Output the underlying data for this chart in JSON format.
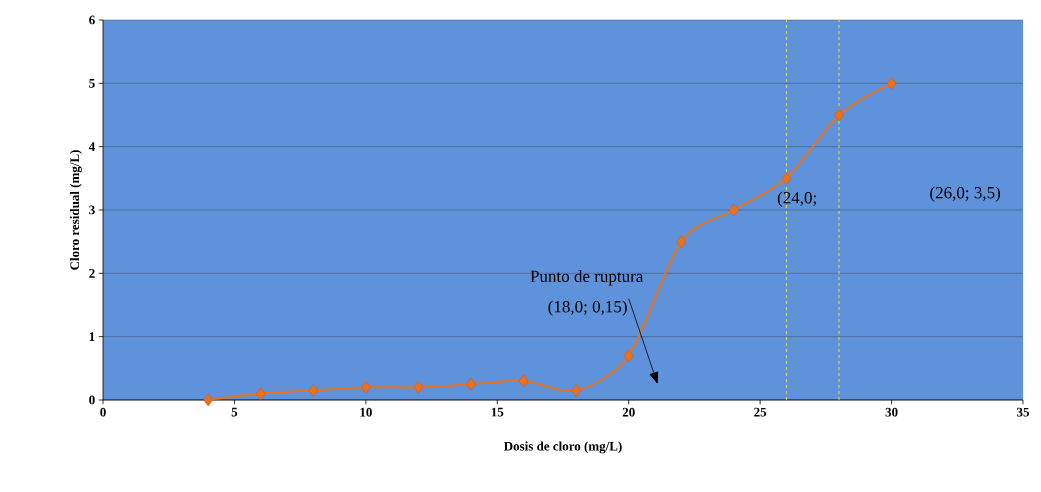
{
  "chart_data": {
    "type": "line",
    "xlabel": "Dosis de cloro (mg/L)",
    "ylabel": "Cloro residual (mg/L)",
    "x": [
      4,
      6,
      8,
      10,
      12,
      14,
      16,
      18,
      20,
      22,
      24,
      26,
      28,
      30
    ],
    "series": [
      {
        "color": "#e8731e",
        "values": [
          0,
          0.1,
          0.15,
          0.2,
          0.2,
          0.25,
          0.3,
          0.15,
          0.7,
          2.5,
          3.0,
          3.5,
          4.5,
          5.0
        ]
      }
    ],
    "xlim": [
      0,
      35
    ],
    "xticks": [
      0,
      5,
      10,
      15,
      20,
      25,
      30,
      35
    ],
    "ylim": [
      0,
      6
    ],
    "yticks": [
      0,
      1,
      2,
      3,
      4,
      5,
      6
    ],
    "grid": "y",
    "marker": "diamond",
    "line_style": "solid",
    "ref_lines": [
      {
        "axis": "x",
        "value": 26,
        "color": "#ffff00",
        "line_style": "dashed"
      },
      {
        "axis": "x",
        "value": 28,
        "color": "#ffff00",
        "line_style": "dashed"
      }
    ],
    "annotations": [
      "Punto de ruptura",
      "(18,0; 0,15)",
      "(24,0;",
      "(26,0; 3,5)"
    ]
  }
}
